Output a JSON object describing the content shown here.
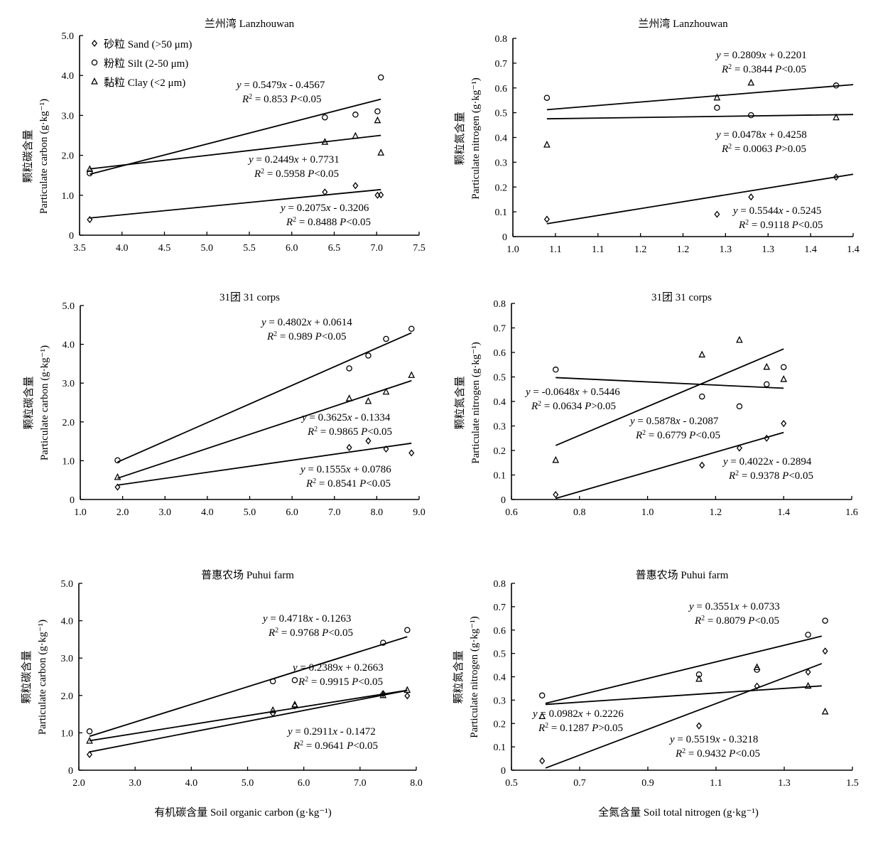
{
  "figure": {
    "xlabel_left": "有机碳含量 Soil organic carbon (g·kg⁻¹)",
    "xlabel_right": "全氮含量 Soil total nitrogen (g·kg⁻¹)",
    "legend": [
      {
        "marker": "diamond",
        "label": "砂粒 Sand (>50 μm)"
      },
      {
        "marker": "circle",
        "label": "粉粒 Silt (2-50 μm)"
      },
      {
        "marker": "triangle",
        "label": "黏粒 Clay (<2 μm)"
      }
    ]
  },
  "chart_data": [
    {
      "id": "lanzhouwan-carbon",
      "type": "scatter",
      "title": "兰州湾 Lanzhouwan",
      "ylabel_cn": "颗粒碳含量",
      "ylabel_en": "Particulate carbon (g·kg⁻¹)",
      "xlim": [
        3.5,
        7.5
      ],
      "ylim": [
        0,
        5.0
      ],
      "xticks": [
        "3.5",
        "4.0",
        "4.5",
        "5.0",
        "5.5",
        "6.0",
        "6.5",
        "7.0",
        "7.5"
      ],
      "yticks": [
        "0",
        "1.0",
        "2.0",
        "3.0",
        "4.0",
        "5.0"
      ],
      "series": [
        {
          "marker": "diamond",
          "x": [
            3.62,
            6.39,
            6.75,
            7.01,
            7.05
          ],
          "y": [
            0.39,
            1.08,
            1.24,
            1.0,
            1.01
          ],
          "fit": {
            "slope": 0.2075,
            "intercept": -0.3206,
            "from": 3.62,
            "to": 7.05
          },
          "eq": "y = 0.2075x - 0.3206",
          "r2": "R2 = 0.8488 P<0.05"
        },
        {
          "marker": "circle",
          "x": [
            3.62,
            6.39,
            6.75,
            7.01,
            7.05
          ],
          "y": [
            1.55,
            2.95,
            3.02,
            3.1,
            3.95
          ],
          "fit": {
            "slope": 0.5479,
            "intercept": -0.4567,
            "from": 3.62,
            "to": 7.05
          },
          "eq": "y = 0.5479x - 0.4567",
          "r2": "R2 = 0.853 P<0.05"
        },
        {
          "marker": "triangle",
          "x": [
            3.62,
            6.39,
            6.75,
            7.01,
            7.05
          ],
          "y": [
            1.65,
            2.33,
            2.48,
            2.87,
            2.06
          ],
          "fit": {
            "slope": 0.2449,
            "intercept": 0.7731,
            "from": 3.62,
            "to": 7.05
          },
          "eq": "y = 0.2449x + 0.7731",
          "r2": "R2 = 0.5958 P<0.05"
        }
      ]
    },
    {
      "id": "lanzhouwan-nitrogen",
      "type": "scatter",
      "title": "兰州湾 Lanzhouwan",
      "ylabel_cn": "颗粒氮含量",
      "ylabel_en": "Particulate nitrogen (g·kg⁻¹)",
      "xlim": [
        1.0,
        1.4
      ],
      "ylim": [
        0,
        0.8
      ],
      "xticks": [
        "1.0",
        "1.1",
        "1.1",
        "1.2",
        "1.2",
        "1.3",
        "1.3",
        "1.4",
        "1.4"
      ],
      "yticks": [
        "0",
        "0.1",
        "0.2",
        "0.3",
        "0.4",
        "0.5",
        "0.6",
        "0.7",
        "0.8"
      ],
      "series": [
        {
          "marker": "diamond",
          "x": [
            1.04,
            1.24,
            1.28,
            1.38
          ],
          "y": [
            0.07,
            0.09,
            0.16,
            0.24
          ],
          "fit": {
            "slope": 0.5544,
            "intercept": -0.5245,
            "from": 1.04,
            "to": 1.4
          },
          "eq": "y = 0.5544x - 0.5245",
          "r2": "R2 = 0.9118 P<0.05"
        },
        {
          "marker": "circle",
          "x": [
            1.04,
            1.24,
            1.28,
            1.38
          ],
          "y": [
            0.56,
            0.52,
            0.49,
            0.61
          ],
          "fit": {
            "slope": 0.0478,
            "intercept": 0.4258,
            "from": 1.04,
            "to": 1.4
          },
          "eq": "y = 0.0478x + 0.4258",
          "r2": "R2 = 0.0063 P>0.05"
        },
        {
          "marker": "triangle",
          "x": [
            1.04,
            1.24,
            1.28,
            1.38
          ],
          "y": [
            0.37,
            0.56,
            0.62,
            0.48
          ],
          "fit": {
            "slope": 0.2809,
            "intercept": 0.2201,
            "from": 1.04,
            "to": 1.4
          },
          "eq": "y = 0.2809x + 0.2201",
          "r2": "R2 = 0.3844 P<0.05"
        }
      ]
    },
    {
      "id": "corps31-carbon",
      "type": "scatter",
      "title": "31团 31 corps",
      "ylabel_cn": "颗粒碳含量",
      "ylabel_en": "Particulate carbon (g·kg⁻¹)",
      "xlim": [
        1.0,
        9.0
      ],
      "ylim": [
        0,
        5.0
      ],
      "xticks": [
        "1.0",
        "2.0",
        "3.0",
        "4.0",
        "5.0",
        "6.0",
        "7.0",
        "8.0",
        "9.0"
      ],
      "yticks": [
        "0",
        "1.0",
        "2.0",
        "3.0",
        "4.0",
        "5.0"
      ],
      "series": [
        {
          "marker": "diamond",
          "x": [
            1.88,
            7.35,
            7.8,
            8.22,
            8.82
          ],
          "y": [
            0.32,
            1.34,
            1.51,
            1.3,
            1.2
          ],
          "fit": {
            "slope": 0.1555,
            "intercept": 0.0786,
            "from": 1.88,
            "to": 8.82
          },
          "eq": "y = 0.1555x + 0.0786",
          "r2": "R2 = 0.8541 P<0.05"
        },
        {
          "marker": "circle",
          "x": [
            1.88,
            7.35,
            7.8,
            8.22,
            8.82
          ],
          "y": [
            1.01,
            3.38,
            3.71,
            4.14,
            4.4
          ],
          "fit": {
            "slope": 0.4802,
            "intercept": 0.0614,
            "from": 1.88,
            "to": 8.82
          },
          "eq": "y = 0.4802x + 0.0614",
          "r2": "R2 = 0.989 P<0.05"
        },
        {
          "marker": "triangle",
          "x": [
            1.88,
            7.35,
            7.8,
            8.22,
            8.82
          ],
          "y": [
            0.57,
            2.6,
            2.53,
            2.77,
            3.2
          ],
          "fit": {
            "slope": 0.3625,
            "intercept": -0.1334,
            "from": 1.88,
            "to": 8.82
          },
          "eq": "y = 0.3625x - 0.1334",
          "r2": "R2 = 0.9865 P<0.05"
        }
      ]
    },
    {
      "id": "corps31-nitrogen",
      "type": "scatter",
      "title": "31团 31 corps",
      "ylabel_cn": "颗粒氮含量",
      "ylabel_en": "Particulate nitrogen (g·kg⁻¹)",
      "xlim": [
        0.6,
        1.6
      ],
      "ylim": [
        0,
        0.8
      ],
      "xticks": [
        "0.6",
        "0.8",
        "1.0",
        "1.2",
        "1.4",
        "1.6"
      ],
      "yticks": [
        "0",
        "0.1",
        "0.2",
        "0.3",
        "0.4",
        "0.5",
        "0.6",
        "0.7",
        "0.8"
      ],
      "series": [
        {
          "marker": "diamond",
          "x": [
            0.73,
            1.16,
            1.27,
            1.35,
            1.4
          ],
          "y": [
            0.02,
            0.14,
            0.21,
            0.25,
            0.31
          ],
          "fit": {
            "slope": 0.4022,
            "intercept": -0.2894,
            "from": 0.73,
            "to": 1.4
          },
          "eq": "y = 0.4022x - 0.2894",
          "r2": "R2 = 0.9378 P<0.05"
        },
        {
          "marker": "circle",
          "x": [
            0.73,
            1.16,
            1.27,
            1.35,
            1.4
          ],
          "y": [
            0.53,
            0.42,
            0.38,
            0.47,
            0.54
          ],
          "fit": {
            "slope": -0.0648,
            "intercept": 0.5446,
            "from": 0.73,
            "to": 1.4
          },
          "eq": "y = -0.0648x + 0.5446",
          "r2": "R2 = 0.0634 P>0.05"
        },
        {
          "marker": "triangle",
          "x": [
            0.73,
            1.16,
            1.27,
            1.35,
            1.4
          ],
          "y": [
            0.16,
            0.59,
            0.65,
            0.54,
            0.49
          ],
          "fit": {
            "slope": 0.5878,
            "intercept": -0.2087,
            "from": 0.73,
            "to": 1.4
          },
          "eq": "y = 0.5878x - 0.2087",
          "r2": "R2 = 0.6779 P<0.05"
        }
      ]
    },
    {
      "id": "puhui-carbon",
      "type": "scatter",
      "title": "普惠农场 Puhui  farm",
      "ylabel_cn": "颗粒碳含量",
      "ylabel_en": "Particulate carbon (g·kg⁻¹)",
      "xlim": [
        2.0,
        8.0
      ],
      "ylim": [
        0,
        5.0
      ],
      "xticks": [
        "2.0",
        "3.0",
        "4.0",
        "5.0",
        "6.0",
        "7.0",
        "8.0"
      ],
      "yticks": [
        "0",
        "1.0",
        "2.0",
        "3.0",
        "4.0",
        "5.0"
      ],
      "series": [
        {
          "marker": "diamond",
          "x": [
            2.19,
            5.45,
            5.84,
            7.41,
            7.84
          ],
          "y": [
            0.42,
            1.52,
            1.72,
            2.05,
            1.99
          ],
          "fit": {
            "slope": 0.2911,
            "intercept": -0.1472,
            "from": 2.19,
            "to": 7.84
          },
          "eq": "y = 0.2911x - 0.1472",
          "r2": "R2 = 0.9641 P<0.05"
        },
        {
          "marker": "circle",
          "x": [
            2.19,
            5.45,
            5.84,
            7.41,
            7.84
          ],
          "y": [
            1.04,
            2.38,
            2.41,
            3.41,
            3.75
          ],
          "fit": {
            "slope": 0.4718,
            "intercept": -0.1263,
            "from": 2.19,
            "to": 7.84
          },
          "eq": "y = 0.4718x - 0.1263",
          "r2": "R2 = 0.9768 P<0.05"
        },
        {
          "marker": "triangle",
          "x": [
            2.19,
            5.45,
            5.84,
            7.41,
            7.84
          ],
          "y": [
            0.78,
            1.6,
            1.75,
            2.0,
            2.14
          ],
          "fit": {
            "slope": 0.2389,
            "intercept": 0.2663,
            "from": 2.19,
            "to": 7.84
          },
          "eq": "y = 0.2389x + 0.2663",
          "r2": "R2 = 0.9915 P<0.05"
        }
      ]
    },
    {
      "id": "puhui-nitrogen",
      "type": "scatter",
      "title": "普惠农场 Puhui  farm",
      "ylabel_cn": "颗粒氮含量",
      "ylabel_en": "Particulate nitrogen (g·kg⁻¹)",
      "xlim": [
        0.5,
        1.5
      ],
      "ylim": [
        0,
        0.8
      ],
      "xticks": [
        "0.5",
        "0.7",
        "0.9",
        "1.1",
        "1.3",
        "1.5"
      ],
      "yticks": [
        "0",
        "0.1",
        "0.2",
        "0.3",
        "0.4",
        "0.5",
        "0.6",
        "0.7",
        "0.8"
      ],
      "series": [
        {
          "marker": "diamond",
          "x": [
            0.59,
            1.05,
            1.22,
            1.37,
            1.42
          ],
          "y": [
            0.04,
            0.19,
            0.36,
            0.42,
            0.51
          ],
          "fit": {
            "slope": 0.5519,
            "intercept": -0.3218,
            "from": 0.6,
            "to": 1.41
          },
          "eq": "y = 0.5519x - 0.3218",
          "r2": "R2 = 0.9432 P<0.05"
        },
        {
          "marker": "circle",
          "x": [
            0.59,
            1.05,
            1.22,
            1.37,
            1.42
          ],
          "y": [
            0.32,
            0.41,
            0.43,
            0.58,
            0.64
          ],
          "fit": {
            "slope": 0.3551,
            "intercept": 0.0733,
            "from": 0.6,
            "to": 1.41
          },
          "eq": "y = 0.3551x + 0.0733",
          "r2": "R2 = 0.8079 P<0.05"
        },
        {
          "marker": "triangle",
          "x": [
            0.59,
            1.05,
            1.22,
            1.37,
            1.42
          ],
          "y": [
            0.23,
            0.39,
            0.44,
            0.36,
            0.25
          ],
          "fit": {
            "slope": 0.0982,
            "intercept": 0.2226,
            "from": 0.6,
            "to": 1.41
          },
          "eq": "y = 0.0982x + 0.2226",
          "r2": "R2 = 0.1287 P>0.05"
        }
      ]
    }
  ]
}
